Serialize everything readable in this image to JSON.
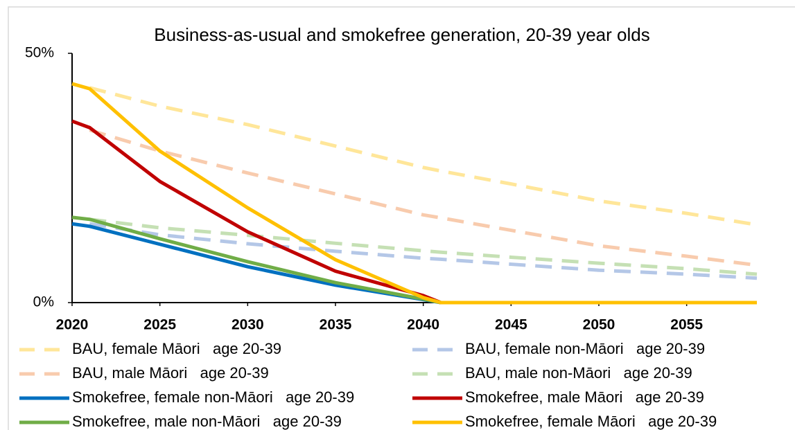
{
  "chart_data": {
    "type": "line",
    "title": "Business-as-usual and smokefree generation, 20-39 year olds",
    "x": [
      2020,
      2021,
      2025,
      2030,
      2035,
      2040,
      2041,
      2045,
      2050,
      2055,
      2059
    ],
    "xlim": [
      2020,
      2059
    ],
    "xticks": [
      2020,
      2025,
      2030,
      2035,
      2040,
      2045,
      2050,
      2055
    ],
    "ylim": [
      0,
      50
    ],
    "yticks": [
      {
        "value": 0,
        "label": "0%"
      },
      {
        "value": 50,
        "label": "50%"
      }
    ],
    "series": [
      {
        "name": "BAU, female Māori   age 20-39",
        "color": "#ffe699",
        "dashed": true,
        "values": [
          null,
          43.1,
          39.4,
          35.7,
          31.4,
          27.1,
          26.4,
          23.8,
          20.4,
          17.9,
          15.6
        ]
      },
      {
        "name": "BAU, female non-Māori   age 20-39",
        "color": "#b4c7e7",
        "dashed": true,
        "values": [
          null,
          15.8,
          13.6,
          11.8,
          10.3,
          8.9,
          8.7,
          7.7,
          6.5,
          5.7,
          4.9
        ]
      },
      {
        "name": "BAU, male Māori   age 20-39",
        "color": "#f8cbad",
        "dashed": true,
        "values": [
          null,
          34.6,
          30.4,
          26,
          21.8,
          17.6,
          17,
          14.5,
          11.4,
          9.3,
          7.5
        ]
      },
      {
        "name": "BAU, male non-Māori   age 20-39",
        "color": "#c5e0b4",
        "dashed": true,
        "values": [
          null,
          16.7,
          15,
          13.5,
          11.9,
          10.4,
          10.1,
          9.1,
          7.9,
          6.8,
          5.7
        ]
      },
      {
        "name": "Smokefree, female non-Māori   age 20-39",
        "color": "#0070c0",
        "dashed": false,
        "values": [
          15.8,
          15.3,
          11.7,
          7.2,
          3.5,
          0.6,
          0,
          0,
          0,
          0,
          0
        ]
      },
      {
        "name": "Smokefree, male Māori   age 20-39",
        "color": "#c00000",
        "dashed": false,
        "values": [
          36.4,
          35.1,
          24.3,
          14.2,
          6.3,
          1.4,
          0,
          0,
          0,
          0,
          0
        ]
      },
      {
        "name": "Smokefree, male non-Māori   age 20-39",
        "color": "#70ad47",
        "dashed": false,
        "values": [
          17.1,
          16.7,
          12.8,
          8.2,
          4,
          0.7,
          0,
          0,
          0,
          0,
          0
        ]
      },
      {
        "name": "Smokefree, female Māori   age 20-39",
        "color": "#ffc000",
        "dashed": false,
        "values": [
          43.9,
          42.9,
          30.4,
          19,
          8.6,
          1,
          0,
          0,
          0,
          0,
          0
        ]
      }
    ]
  }
}
